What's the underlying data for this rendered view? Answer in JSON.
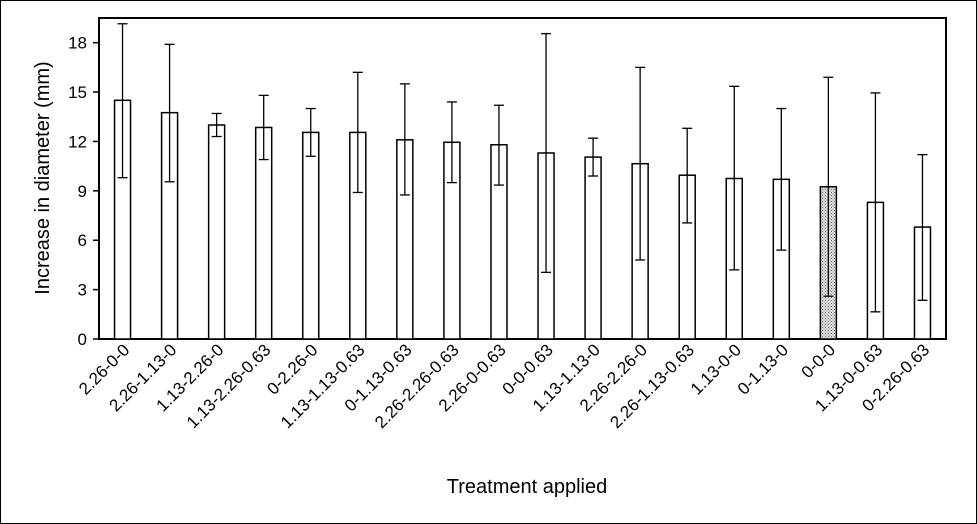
{
  "chart_data": {
    "type": "bar",
    "xlabel": "Treatment applied",
    "ylabel": "Increase in diameter (mm)",
    "ylim": [
      0,
      19.5
    ],
    "yticks": [
      0,
      3,
      6,
      9,
      12,
      15,
      18
    ],
    "yticklabels": [
      "0",
      "3",
      "6",
      "9",
      "12",
      "15",
      "18"
    ],
    "grid": false,
    "categories": [
      "2.26-0-0",
      "2.26-1.13-0",
      "1.13-2.26-0",
      "1.13-2.26-0.63",
      "0-2.26-0",
      "1.13-1.13-0.63",
      "0-1.13-0.63",
      "2.26-2.26-0.63",
      "2.26-0-0.63",
      "0-0-0.63",
      "1.13-1.13-0",
      "2.26-2.26-0",
      "2.26-1.13-0.63",
      "1.13-0-0",
      "0-1.13-0",
      "0-0-0",
      "1.13-0-0.63",
      "0-2.26-0.63"
    ],
    "values": [
      14.5,
      13.75,
      13.0,
      12.85,
      12.55,
      12.55,
      12.1,
      11.95,
      11.8,
      11.3,
      11.05,
      10.65,
      9.95,
      9.75,
      9.7,
      9.25,
      8.3,
      6.8
    ],
    "error_low": [
      9.8,
      9.55,
      12.3,
      10.9,
      11.1,
      8.9,
      8.75,
      9.5,
      9.35,
      4.05,
      9.9,
      4.8,
      7.05,
      4.2,
      5.4,
      2.6,
      1.65,
      2.35
    ],
    "error_high": [
      19.15,
      17.9,
      13.7,
      14.8,
      14.0,
      16.2,
      15.5,
      14.4,
      14.2,
      18.55,
      12.2,
      16.5,
      12.8,
      15.35,
      14.0,
      15.9,
      14.95,
      11.2
    ],
    "bar_fill": "#ffffff",
    "highlight_index": 15,
    "highlight_fill": "#c8c8c8",
    "stroke": "#000000"
  }
}
